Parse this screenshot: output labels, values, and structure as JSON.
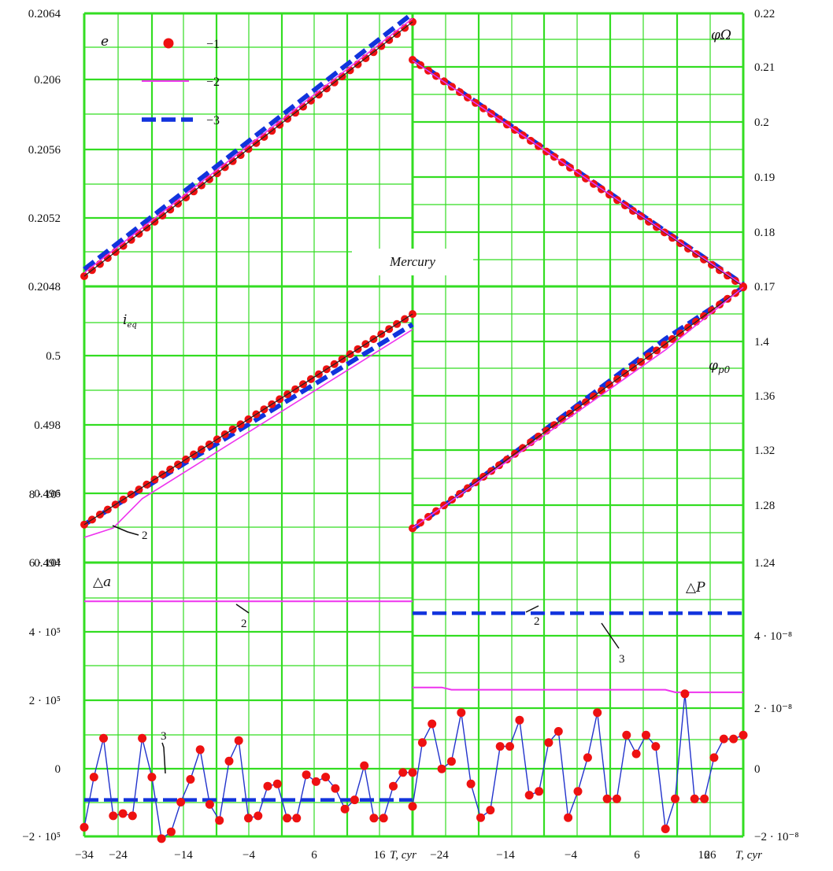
{
  "figure_label": "Mercury",
  "colors": {
    "grid": "#33dd22",
    "series_1": "#ee1111",
    "series_2": "#ee33ee",
    "series_3": "#1133dd",
    "connector": "#2233cc"
  },
  "legend": {
    "items": [
      "−1",
      "−2",
      "−3"
    ]
  },
  "chart_data": [
    {
      "id": "e",
      "type": "line",
      "panel": "top-left",
      "ylabel": "e",
      "yaxis_side": "left",
      "xlim": [
        -34,
        0
      ],
      "ylim": [
        0.2048,
        0.2064
      ],
      "ytick_labels": [
        "0.2048",
        "0.2052",
        "0.2056",
        "0.206",
        "0.2064"
      ],
      "series": [
        {
          "name": "1",
          "style": "markers",
          "x": [
            -34,
            0
          ],
          "y": [
            0.20486,
            0.20635
          ]
        },
        {
          "name": "2",
          "style": "solid",
          "x": [
            -34,
            0
          ],
          "y": [
            0.20488,
            0.20637
          ]
        },
        {
          "name": "3",
          "style": "dashed",
          "x": [
            -34,
            0
          ],
          "y": [
            0.2049,
            0.2064
          ]
        }
      ]
    },
    {
      "id": "phi_Omega",
      "type": "line",
      "panel": "top-right",
      "ylabel": "φΩ",
      "yaxis_side": "right",
      "xlim": [
        -34,
        0
      ],
      "ylim": [
        0.17,
        0.22
      ],
      "ytick_labels": [
        "0.17",
        "0.18",
        "0.19",
        "0.2",
        "0.21",
        "0.22"
      ],
      "series": [
        {
          "name": "1",
          "style": "markers",
          "x": [
            -34,
            0
          ],
          "y": [
            0.2115,
            0.17
          ]
        },
        {
          "name": "2",
          "style": "solid",
          "x": [
            -34,
            0
          ],
          "y": [
            0.2114,
            0.1702
          ]
        },
        {
          "name": "3",
          "style": "dashed",
          "x": [
            -34,
            0
          ],
          "y": [
            0.2117,
            0.1704
          ]
        }
      ]
    },
    {
      "id": "i_eq",
      "type": "line",
      "panel": "middle-left",
      "ylabel": "i",
      "ylabel_sub": "eq",
      "yaxis_side": "left",
      "xlim": [
        -34,
        0
      ],
      "ylim": [
        0.494,
        0.502
      ],
      "ytick_labels": [
        "0.494",
        "0.496",
        "0.498",
        "0.5"
      ],
      "annotations": [
        {
          "text": "2"
        }
      ],
      "series": [
        {
          "name": "1",
          "style": "markers",
          "x": [
            -34,
            0
          ],
          "y": [
            0.4951,
            0.5012
          ]
        },
        {
          "name": "2",
          "style": "solid",
          "x": [
            -34,
            -32,
            -31,
            -28,
            0
          ],
          "y": [
            0.49473,
            0.49491,
            0.495,
            0.49585,
            0.50075
          ]
        },
        {
          "name": "3",
          "style": "dashed",
          "x": [
            -34,
            0
          ],
          "y": [
            0.4951,
            0.5009
          ]
        }
      ]
    },
    {
      "id": "phi_p0",
      "type": "line",
      "panel": "middle-right",
      "ylabel": "φ",
      "ylabel_sub": "p0",
      "yaxis_side": "right",
      "xlim": [
        -34,
        0
      ],
      "ylim": [
        1.24,
        1.44
      ],
      "ytick_labels": [
        "1.24",
        "1.28",
        "1.32",
        "1.36",
        "1.4"
      ],
      "series": [
        {
          "name": "1",
          "style": "markers",
          "x": [
            -34,
            0
          ],
          "y": [
            1.2648,
            1.4393
          ]
        },
        {
          "name": "2",
          "style": "solid",
          "x": [
            -34,
            -8,
            0
          ],
          "y": [
            1.265,
            1.394,
            1.4393
          ]
        },
        {
          "name": "3",
          "style": "dashed",
          "x": [
            -34,
            -8,
            0
          ],
          "y": [
            1.264,
            1.402,
            1.4393
          ]
        }
      ]
    },
    {
      "id": "delta_a",
      "type": "line",
      "panel": "bottom-left",
      "ylabel": "△a",
      "yaxis_side": "left",
      "xlim": [
        -34,
        0
      ],
      "ylim": [
        -200000,
        1000000
      ],
      "ytick_labels": [
        "−2 · 10⁵",
        "0",
        "2 · 10⁵",
        "4 · 10⁵",
        "6 · 10⁵",
        "8 · 10⁵"
      ],
      "xtick_labels": [
        "−34",
        "−24",
        "−14",
        "−4",
        "6",
        "16"
      ],
      "xlabel": "T, cyr",
      "annotations": [
        {
          "text": "2"
        },
        {
          "text": "3"
        }
      ],
      "series": [
        {
          "name": "1",
          "style": "markers+line",
          "x": [
            -34,
            -33,
            -32,
            -31,
            -30,
            -29,
            -28,
            -27,
            -26,
            -25,
            -24,
            -23,
            -22,
            -21,
            -20,
            -19,
            -18,
            -17,
            -16,
            -15,
            -14,
            -13,
            -12,
            -11,
            -10,
            -9,
            -8,
            -7,
            -6,
            -5,
            -4,
            -3,
            -2,
            -1,
            0
          ],
          "y": [
            -160000,
            60000,
            230000,
            -110000,
            -100000,
            -110000,
            230000,
            60000,
            -210000,
            -180000,
            -50000,
            50000,
            180000,
            -60000,
            -130000,
            130000,
            220000,
            -120000,
            -110000,
            20000,
            30000,
            -120000,
            -120000,
            70000,
            40000,
            60000,
            10000,
            -80000,
            -40000,
            110000,
            -120000,
            -120000,
            20000,
            80000,
            80000
          ]
        },
        {
          "name": "2",
          "style": "solid",
          "x": [
            -34,
            0
          ],
          "y": [
            830000,
            830000
          ]
        },
        {
          "name": "3",
          "style": "dashed",
          "x": [
            -34,
            0
          ],
          "y": [
            -40000,
            -40000
          ]
        }
      ]
    },
    {
      "id": "delta_P",
      "type": "line",
      "panel": "bottom-right",
      "ylabel": "△P",
      "yaxis_side": "right",
      "xlim": [
        -34,
        0
      ],
      "ylim": [
        -2e-08,
        5.3e-08
      ],
      "ytick_labels": [
        "−2 · 10⁻⁸",
        "0",
        "2 · 10⁻⁸",
        "4 · 10⁻⁸"
      ],
      "xtick_labels": [
        "−24",
        "−14",
        "−4",
        "6",
        "16",
        "26"
      ],
      "xlabel": "T, cyr",
      "annotations": [
        {
          "text": "2"
        },
        {
          "text": "3"
        }
      ],
      "series": [
        {
          "name": "1",
          "style": "markers+line",
          "x": [
            -34,
            -33,
            -32,
            -31,
            -30,
            -29,
            -28,
            -27,
            -26,
            -25,
            -24,
            -23,
            -22,
            -21,
            -20,
            -19,
            -18,
            -17,
            -16,
            -15,
            -14,
            -13,
            -12,
            -11,
            -10,
            -9,
            -8,
            -7,
            -6,
            -5,
            -4,
            -3,
            -2,
            -1,
            0
          ],
          "y": [
            -1.2e-08,
            5e-09,
            1e-08,
            -2e-09,
            0,
            1.3e-08,
            -6e-09,
            -1.5e-08,
            -1.3e-08,
            4e-09,
            4e-09,
            1.1e-08,
            -9e-09,
            -8e-09,
            5e-09,
            8e-09,
            -1.5e-08,
            -8e-09,
            1e-09,
            1.3e-08,
            -1e-08,
            -1e-08,
            7e-09,
            2e-09,
            7e-09,
            4e-09,
            -1.8e-08,
            -1e-08,
            1.8e-08,
            -1e-08,
            -1e-08,
            1e-09,
            6e-09,
            6e-09,
            7e-09
          ]
        },
        {
          "name": "2",
          "style": "solid",
          "x": [
            -34,
            -31,
            -30,
            -8,
            -7,
            0
          ],
          "y": [
            1.97e-08,
            1.97e-08,
            1.91e-08,
            1.91e-08,
            1.84e-08,
            1.84e-08
          ]
        },
        {
          "name": "3",
          "style": "dashed",
          "x": [
            -34,
            0
          ],
          "y": [
            3.95e-08,
            3.95e-08
          ]
        }
      ]
    }
  ]
}
